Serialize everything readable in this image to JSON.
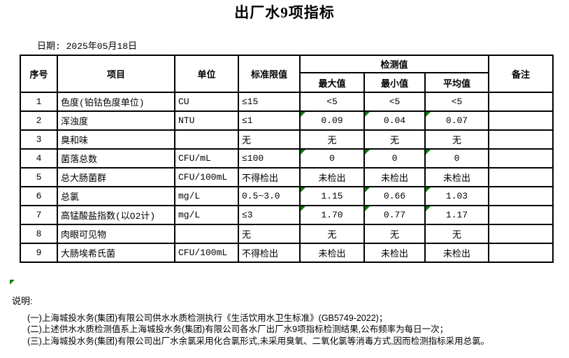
{
  "title": "出厂水9项指标",
  "date_label": "日期: 2025年05月18日",
  "table": {
    "headers": {
      "seq": "序号",
      "item": "项目",
      "unit": "单位",
      "limit": "标准限值",
      "detection": "检测值",
      "max": "最大值",
      "min": "最小值",
      "avg": "平均值",
      "remark": "备注"
    },
    "rows": [
      {
        "seq": "1",
        "item": "色度(铂钴色度单位)",
        "unit": "CU",
        "limit": "≤15",
        "max": "<5",
        "min": "<5",
        "avg": "<5",
        "remark": "",
        "flagged": false
      },
      {
        "seq": "2",
        "item": "浑浊度",
        "unit": "NTU",
        "limit": "≤1",
        "max": "0.09",
        "min": "0.04",
        "avg": "0.07",
        "remark": "",
        "flagged": true
      },
      {
        "seq": "3",
        "item": "臭和味",
        "unit": "",
        "limit": "无",
        "max": "无",
        "min": "无",
        "avg": "无",
        "remark": "",
        "flagged": false
      },
      {
        "seq": "4",
        "item": "菌落总数",
        "unit": "CFU/mL",
        "limit": "≤100",
        "max": "0",
        "min": "0",
        "avg": "0",
        "remark": "",
        "flagged": true
      },
      {
        "seq": "5",
        "item": "总大肠菌群",
        "unit": "CFU/100mL",
        "limit": "不得检出",
        "max": "未检出",
        "min": "未检出",
        "avg": "未检出",
        "remark": "",
        "flagged": false
      },
      {
        "seq": "6",
        "item": "总氯",
        "unit": "mg/L",
        "limit": "0.5~3.0",
        "max": "1.15",
        "min": "0.66",
        "avg": "1.03",
        "remark": "",
        "flagged": true
      },
      {
        "seq": "7",
        "item": "高锰酸盐指数(以O2计)",
        "unit": "mg/L",
        "limit": "≤3",
        "max": "1.70",
        "min": "0.77",
        "avg": "1.17",
        "remark": "",
        "flagged": true
      },
      {
        "seq": "8",
        "item": "肉眼可见物",
        "unit": "",
        "limit": "无",
        "max": "无",
        "min": "无",
        "avg": "无",
        "remark": "",
        "flagged": false
      },
      {
        "seq": "9",
        "item": "大肠埃希氏菌",
        "unit": "CFU/100mL",
        "limit": "不得检出",
        "max": "未检出",
        "min": "未检出",
        "avg": "未检出",
        "remark": "",
        "flagged": false
      }
    ]
  },
  "notes": {
    "label": "说明:",
    "items": [
      "(一)上海城投水务(集团)有限公司供水水质检测执行《生活饮用水卫生标准》(GB5749-2022)；",
      "(二)上述供水水质检测值系上海城投水务(集团)有限公司各水厂出厂水9项指标检测结果,公布频率为每日一次；",
      "(三)上海城投水务(集团)有限公司出厂水余氯采用化合氯形式,未采用臭氧、二氧化氯等消毒方式,因而检测指标采用总氯。"
    ]
  },
  "colors": {
    "flag_triangle": "#008000",
    "border": "#000000"
  }
}
